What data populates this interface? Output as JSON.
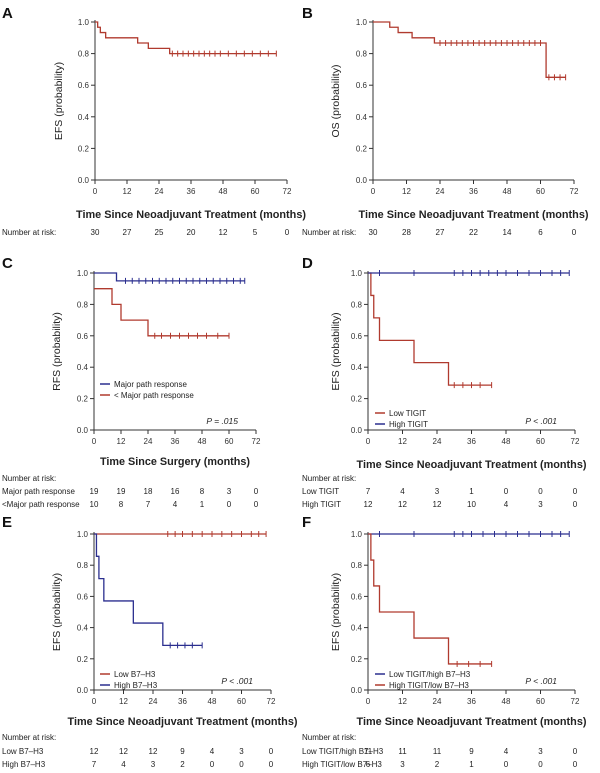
{
  "figure": {
    "colors": {
      "red": "#b03a2e",
      "blue": "#2b2f8f",
      "axis": "#333333"
    },
    "number_at_risk_label": "Number at risk:",
    "number_at_risk_label_short": "Number at risk"
  },
  "chart_data": [
    {
      "id": "A",
      "panel_label": "A",
      "type": "line",
      "ylabel": "EFS (probability)",
      "xlabel": "Time Since Neoadjuvant Treatment (months)",
      "xlim": [
        0,
        72
      ],
      "ylim": [
        0,
        1.0
      ],
      "xticks": [
        "0",
        "12",
        "24",
        "36",
        "48",
        "60",
        "72"
      ],
      "yticks": [
        "0.0",
        "0.2",
        "0.4",
        "0.6",
        "0.8",
        "1.0"
      ],
      "series": [
        {
          "name": "EFS",
          "color": "#b03a2e",
          "steps": [
            [
              0,
              1.0
            ],
            [
              1,
              0.967
            ],
            [
              2,
              0.933
            ],
            [
              4,
              0.9
            ],
            [
              16,
              0.867
            ],
            [
              20,
              0.833
            ],
            [
              28,
              0.8
            ],
            [
              68,
              0.8
            ]
          ],
          "censor": [
            29,
            31,
            33,
            35,
            37,
            39,
            41,
            43,
            45,
            47,
            50,
            53,
            56,
            59,
            62,
            65,
            68
          ]
        }
      ],
      "risk_label": "Number at risk:",
      "risk": [
        {
          "label": "",
          "values": [
            "30",
            "27",
            "25",
            "20",
            "12",
            "5",
            "0"
          ]
        }
      ]
    },
    {
      "id": "B",
      "panel_label": "B",
      "type": "line",
      "ylabel": "OS (probability)",
      "xlabel": "Time Since Neoadjuvant Treatment (months)",
      "xlim": [
        0,
        72
      ],
      "ylim": [
        0,
        1.0
      ],
      "xticks": [
        "0",
        "12",
        "24",
        "36",
        "48",
        "60",
        "72"
      ],
      "yticks": [
        "0.0",
        "0.2",
        "0.4",
        "0.6",
        "0.8",
        "1.0"
      ],
      "series": [
        {
          "name": "OS",
          "color": "#b03a2e",
          "steps": [
            [
              0,
              1.0
            ],
            [
              6,
              0.967
            ],
            [
              9,
              0.933
            ],
            [
              14,
              0.9
            ],
            [
              22,
              0.867
            ],
            [
              62,
              0.65
            ],
            [
              69,
              0.65
            ]
          ],
          "censor": [
            24,
            26,
            28,
            30,
            32,
            34,
            36,
            38,
            40,
            42,
            44,
            46,
            48,
            50,
            52,
            54,
            56,
            58,
            60,
            63,
            65,
            67,
            69
          ]
        }
      ],
      "risk_label": "Number at risk:",
      "risk": [
        {
          "label": "",
          "values": [
            "30",
            "28",
            "27",
            "22",
            "14",
            "6",
            "0"
          ]
        }
      ]
    },
    {
      "id": "C",
      "panel_label": "C",
      "type": "line",
      "ylabel": "RFS (probability)",
      "xlabel": "Time Since Surgery (months)",
      "xlim": [
        0,
        72
      ],
      "ylim": [
        0,
        1.0
      ],
      "xticks": [
        "0",
        "12",
        "24",
        "36",
        "48",
        "60",
        "72"
      ],
      "yticks": [
        "0.0",
        "0.2",
        "0.4",
        "0.6",
        "0.8",
        "1.0"
      ],
      "pvalue": "P = .015",
      "series": [
        {
          "name": "Major path response",
          "color": "#2b2f8f",
          "steps": [
            [
              0,
              1.0
            ],
            [
              10,
              0.95
            ],
            [
              67,
              0.95
            ]
          ],
          "censor": [
            14,
            17,
            20,
            23,
            26,
            29,
            32,
            35,
            38,
            41,
            44,
            47,
            50,
            53,
            56,
            59,
            62,
            65,
            67
          ]
        },
        {
          "name": "< Major path response",
          "color": "#b03a2e",
          "steps": [
            [
              0,
              0.9
            ],
            [
              8,
              0.8
            ],
            [
              12,
              0.7
            ],
            [
              24,
              0.6
            ],
            [
              60,
              0.6
            ]
          ],
          "censor": [
            27,
            30,
            34,
            38,
            42,
            46,
            50,
            55,
            60
          ]
        }
      ],
      "risk_label": "Number at risk:",
      "risk": [
        {
          "label": "Major path response",
          "values": [
            "19",
            "19",
            "18",
            "16",
            "8",
            "3",
            "0"
          ]
        },
        {
          "label": "<Major path response",
          "values": [
            "10",
            "8",
            "7",
            "4",
            "1",
            "0",
            "0"
          ]
        }
      ]
    },
    {
      "id": "D",
      "panel_label": "D",
      "type": "line",
      "ylabel": "EFS (probability)",
      "xlabel": "Time Since Neoadjuvant Treatment (months)",
      "xlim": [
        0,
        72
      ],
      "ylim": [
        0,
        1.0
      ],
      "xticks": [
        "0",
        "12",
        "24",
        "36",
        "48",
        "60",
        "72"
      ],
      "yticks": [
        "0.0",
        "0.2",
        "0.4",
        "0.6",
        "0.8",
        "1.0"
      ],
      "pvalue": "P < .001",
      "series": [
        {
          "name": "Low TIGIT",
          "color": "#b03a2e",
          "steps": [
            [
              0,
              1.0
            ],
            [
              1,
              0.857
            ],
            [
              2,
              0.714
            ],
            [
              4,
              0.571
            ],
            [
              16,
              0.429
            ],
            [
              28,
              0.286
            ],
            [
              43,
              0.286
            ]
          ],
          "censor": [
            30,
            33,
            36,
            39,
            43
          ]
        },
        {
          "name": "High TIGIT",
          "color": "#2b2f8f",
          "steps": [
            [
              0,
              1.0
            ],
            [
              70,
              1.0
            ]
          ],
          "censor": [
            4,
            16,
            30,
            33,
            36,
            39,
            42,
            45,
            48,
            52,
            56,
            60,
            64,
            67,
            70
          ]
        }
      ],
      "risk_label": "Number at risk:",
      "risk": [
        {
          "label": "Low TIGIT",
          "values": [
            "7",
            "4",
            "3",
            "1",
            "0",
            "0",
            "0"
          ]
        },
        {
          "label": "High TIGIT",
          "values": [
            "12",
            "12",
            "12",
            "10",
            "4",
            "3",
            "0"
          ]
        }
      ]
    },
    {
      "id": "E",
      "panel_label": "E",
      "type": "line",
      "ylabel": "EFS (probability)",
      "xlabel": "Time Since Neoadjuvant Treatment (months)",
      "xlim": [
        0,
        72
      ],
      "ylim": [
        0,
        1.0
      ],
      "xticks": [
        "0",
        "12",
        "24",
        "36",
        "48",
        "60",
        "72"
      ],
      "yticks": [
        "0.0",
        "0.2",
        "0.4",
        "0.6",
        "0.8",
        "1.0"
      ],
      "pvalue": "P < .001",
      "series": [
        {
          "name": "Low B7–H3",
          "color": "#b03a2e",
          "steps": [
            [
              0,
              1.0
            ],
            [
              70,
              1.0
            ]
          ],
          "censor": [
            30,
            33,
            36,
            40,
            44,
            48,
            52,
            56,
            60,
            64,
            67,
            70
          ]
        },
        {
          "name": "High B7–H3",
          "color": "#2b2f8f",
          "steps": [
            [
              0,
              1.0
            ],
            [
              1,
              0.857
            ],
            [
              2,
              0.714
            ],
            [
              4,
              0.571
            ],
            [
              16,
              0.429
            ],
            [
              28,
              0.286
            ],
            [
              44,
              0.286
            ]
          ],
          "censor": [
            31,
            34,
            37,
            40,
            44
          ]
        }
      ],
      "risk_label": "Number at risk:",
      "risk": [
        {
          "label": "Low B7–H3",
          "values": [
            "12",
            "12",
            "12",
            "9",
            "4",
            "3",
            "0"
          ]
        },
        {
          "label": "High B7–H3",
          "values": [
            "7",
            "4",
            "3",
            "2",
            "0",
            "0",
            "0"
          ]
        }
      ]
    },
    {
      "id": "F",
      "panel_label": "F",
      "type": "line",
      "ylabel": "EFS (probability)",
      "xlabel": "Time Since Neoadjuvant Treatment (months)",
      "xlim": [
        0,
        72
      ],
      "ylim": [
        0,
        1.0
      ],
      "xticks": [
        "0",
        "12",
        "24",
        "36",
        "48",
        "60",
        "72"
      ],
      "yticks": [
        "0.0",
        "0.2",
        "0.4",
        "0.6",
        "0.8",
        "1.0"
      ],
      "pvalue": "P < .001",
      "series": [
        {
          "name": "Low TIGIT/high B7–H3",
          "color": "#2b2f8f",
          "steps": [
            [
              0,
              1.0
            ],
            [
              70,
              1.0
            ]
          ],
          "censor": [
            4,
            16,
            30,
            33,
            36,
            40,
            44,
            48,
            52,
            56,
            60,
            64,
            67,
            70
          ]
        },
        {
          "name": "High TIGIT/low B7–H3",
          "color": "#b03a2e",
          "steps": [
            [
              0,
              1.0
            ],
            [
              1,
              0.833
            ],
            [
              2,
              0.667
            ],
            [
              4,
              0.5
            ],
            [
              16,
              0.333
            ],
            [
              28,
              0.167
            ],
            [
              43,
              0.167
            ]
          ],
          "censor": [
            31,
            35,
            39,
            43
          ]
        }
      ],
      "risk_label": "Number at risk:",
      "risk": [
        {
          "label": "Low TIGIT/high B7–H3",
          "values": [
            "11",
            "11",
            "11",
            "9",
            "4",
            "3",
            "0"
          ]
        },
        {
          "label": "High TIGIT/low B7–H3",
          "values": [
            "6",
            "3",
            "2",
            "1",
            "0",
            "0",
            "0"
          ]
        }
      ]
    }
  ]
}
